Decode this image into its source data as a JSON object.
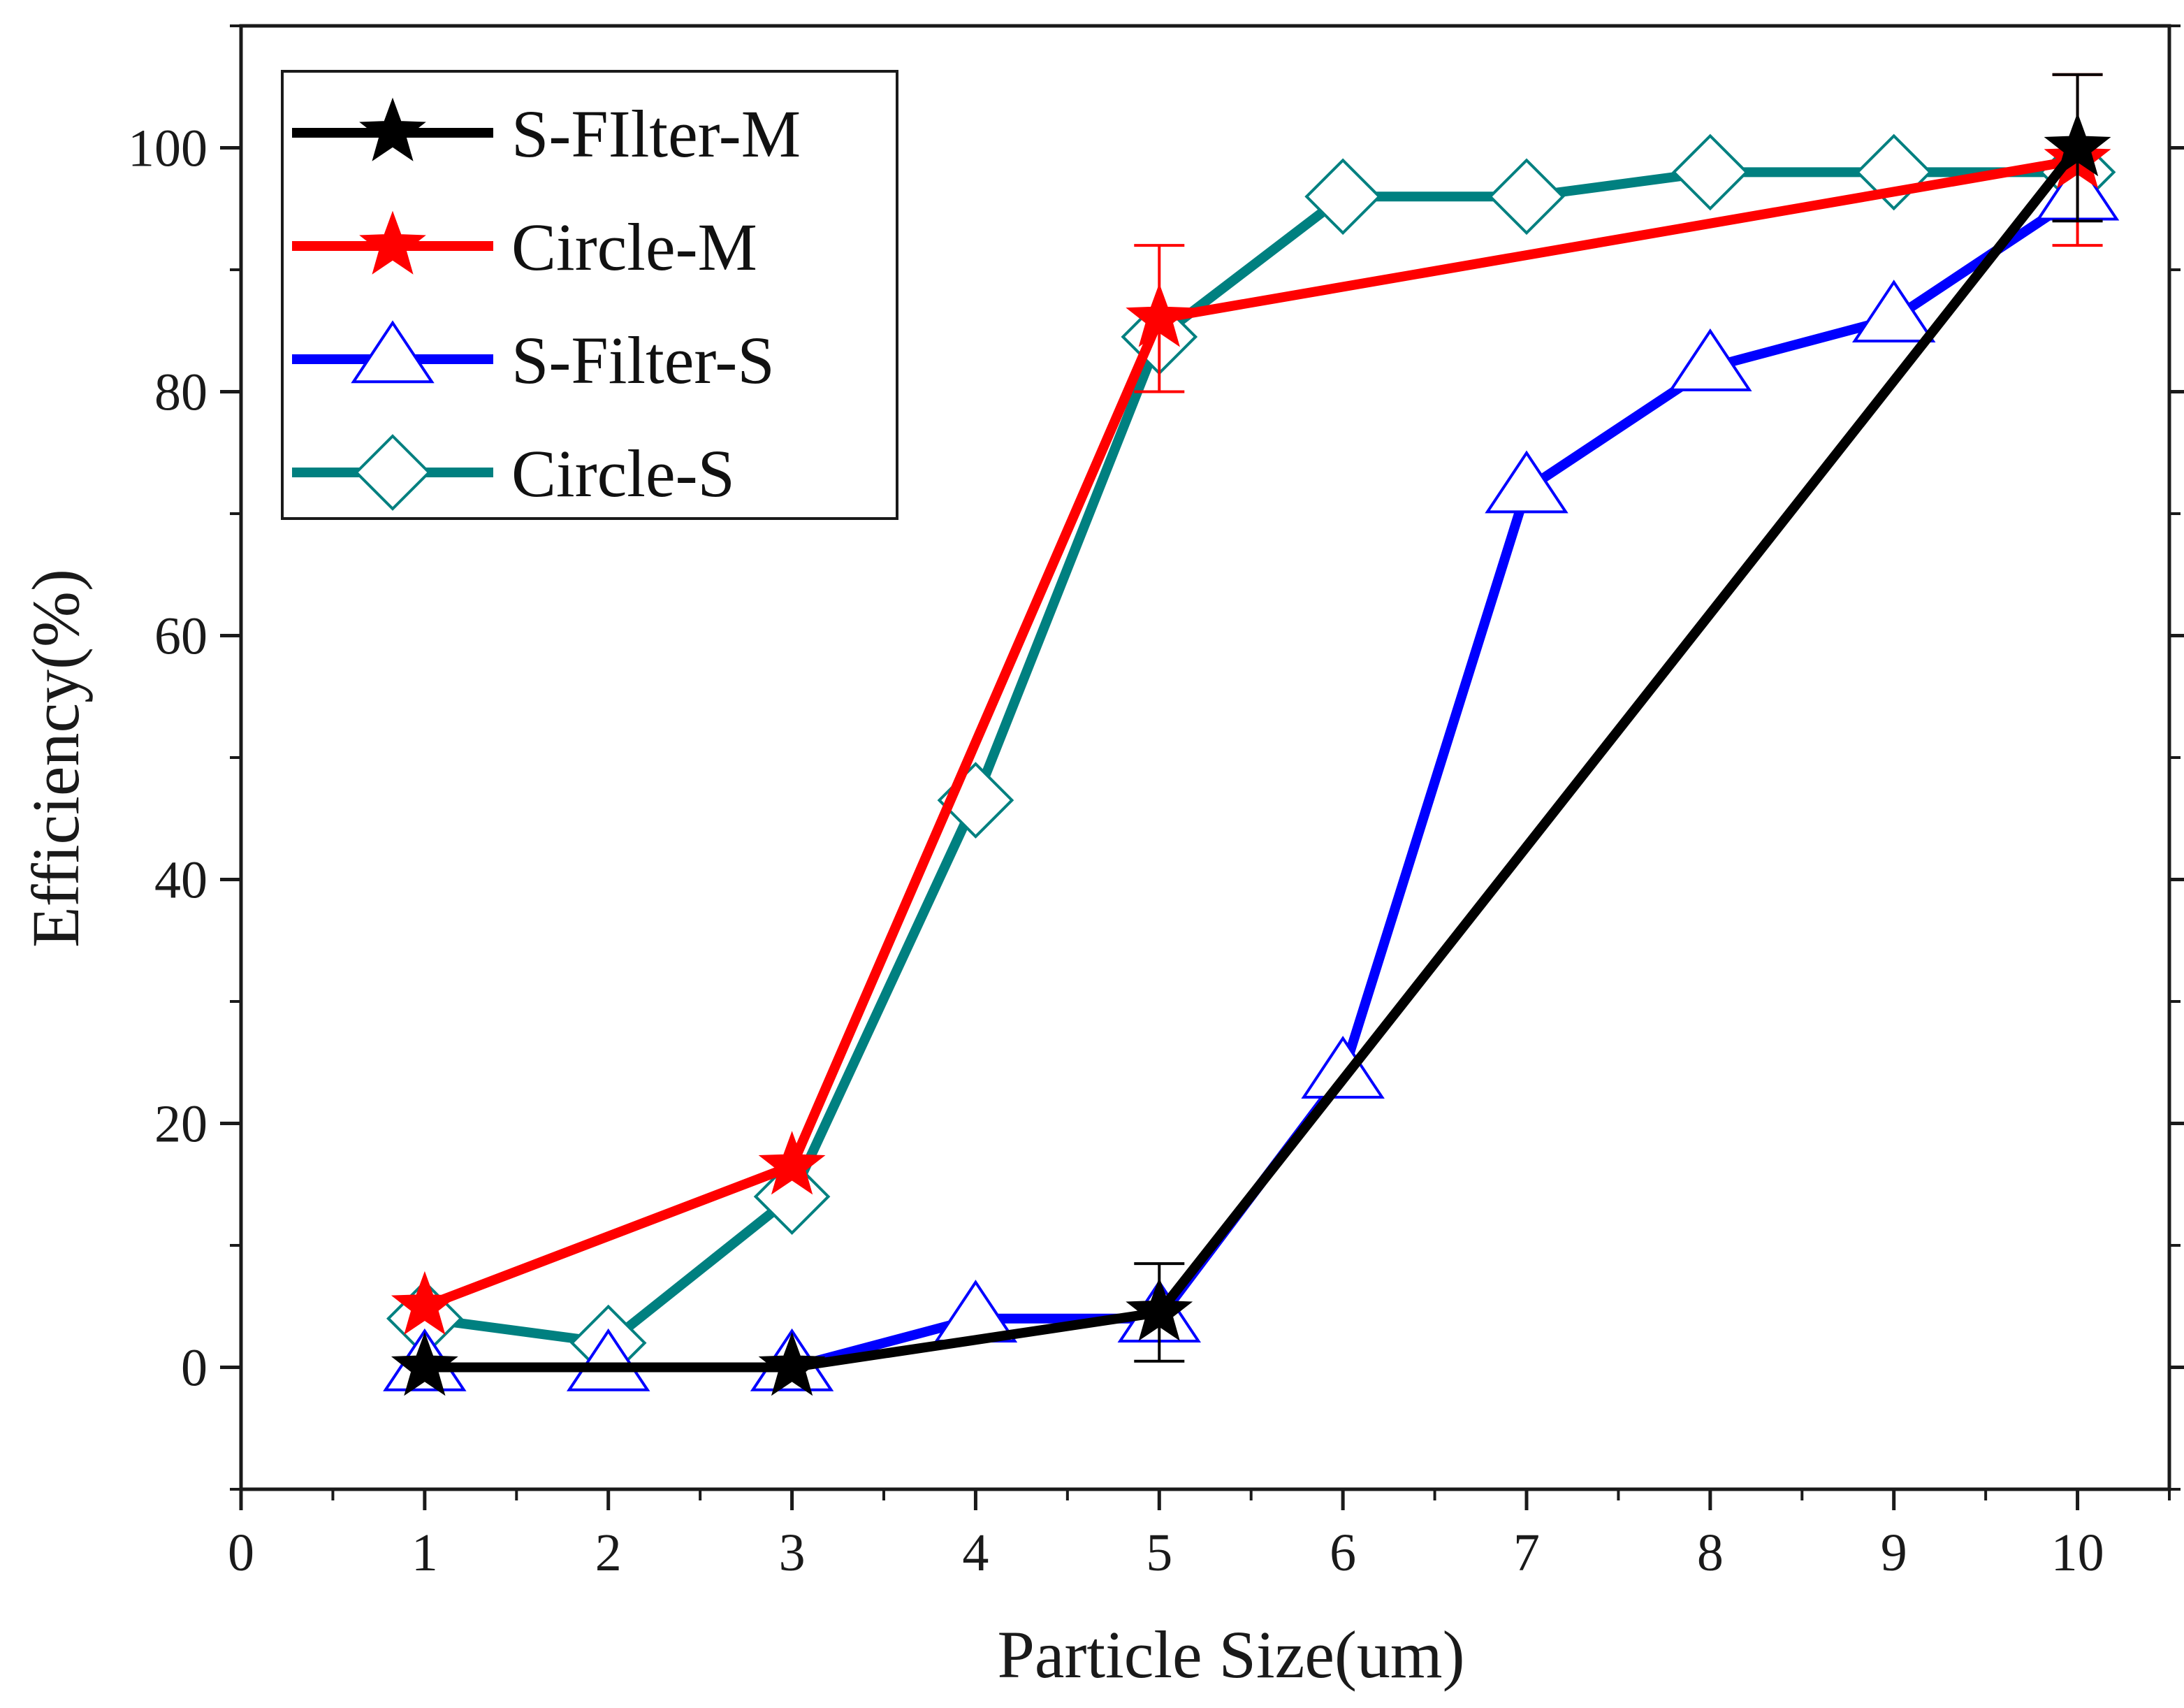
{
  "chart_data": {
    "type": "line",
    "title": "",
    "xlabel": "Particle Size(um)",
    "ylabel": "Efficiency(%)",
    "xlim": [
      0,
      10.5
    ],
    "ylim": [
      -10,
      110
    ],
    "x_ticks": [
      "0",
      "1",
      "2",
      "3",
      "4",
      "5",
      "6",
      "7",
      "8",
      "9",
      "10"
    ],
    "y_ticks": [
      "0",
      "20",
      "40",
      "60",
      "80",
      "100"
    ],
    "legend_position": "top-left",
    "series": [
      {
        "name": "S-FIlter-M",
        "color": "#000000",
        "marker": "star",
        "x": [
          1,
          3,
          5,
          10
        ],
        "y": [
          0,
          0,
          4.5,
          100
        ],
        "error": [
          0,
          0,
          4,
          6
        ]
      },
      {
        "name": "Circle-M",
        "color": "#ff0000",
        "marker": "star",
        "x": [
          1,
          3,
          5,
          10
        ],
        "y": [
          5,
          16.5,
          86,
          99
        ],
        "error": [
          0,
          0,
          6,
          7
        ]
      },
      {
        "name": "S-Filter-S",
        "color": "#0000ff",
        "marker": "triangle",
        "x": [
          1,
          2,
          3,
          4,
          5,
          6,
          7,
          8,
          9,
          10
        ],
        "y": [
          0,
          0,
          0,
          4,
          4,
          24,
          72,
          82,
          86,
          96
        ],
        "error": []
      },
      {
        "name": "Circle-S",
        "color": "#008080",
        "marker": "diamond",
        "x": [
          1,
          2,
          3,
          4,
          5,
          6,
          7,
          8,
          9,
          10
        ],
        "y": [
          4,
          2,
          14,
          46.5,
          84.5,
          96,
          96,
          98,
          98,
          98
        ],
        "error": []
      }
    ]
  }
}
